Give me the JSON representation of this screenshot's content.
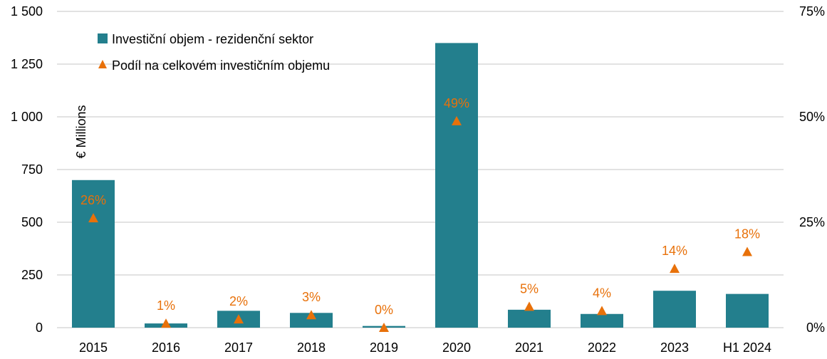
{
  "chart_data": {
    "type": "bar",
    "categories": [
      "2015",
      "2016",
      "2017",
      "2018",
      "2019",
      "2020",
      "2021",
      "2022",
      "2023",
      "H1 2024"
    ],
    "series": [
      {
        "name": "Investiční objem - rezidenční sektor",
        "type": "bar",
        "axis": "left",
        "values": [
          700,
          20,
          80,
          70,
          8,
          1350,
          85,
          65,
          175,
          160
        ]
      },
      {
        "name": "Podíl na celkovém investičním objemu",
        "type": "scatter",
        "marker": "triangle",
        "axis": "right",
        "values": [
          26,
          1,
          2,
          3,
          0,
          49,
          5,
          4,
          14,
          18
        ],
        "labels": [
          "26%",
          "1%",
          "2%",
          "3%",
          "0%",
          "49%",
          "5%",
          "4%",
          "14%",
          "18%"
        ]
      }
    ],
    "ylabel": "€ Millions",
    "ylim": [
      0,
      1500
    ],
    "y_ticks": [
      0,
      250,
      500,
      750,
      1000,
      1250,
      1500
    ],
    "y_tick_labels": [
      "0",
      "250",
      "500",
      "750",
      "1 000",
      "1 250",
      "1 500"
    ],
    "y2lim": [
      0,
      75
    ],
    "y2_ticks": [
      0,
      25,
      50,
      75
    ],
    "y2_tick_labels": [
      "0%",
      "25%",
      "50%",
      "75%"
    ],
    "grid": true,
    "legend_position": "top-left",
    "colors": {
      "bar": "#237F8D",
      "marker": "#E8710A",
      "grid": "#D9D9D9"
    }
  }
}
